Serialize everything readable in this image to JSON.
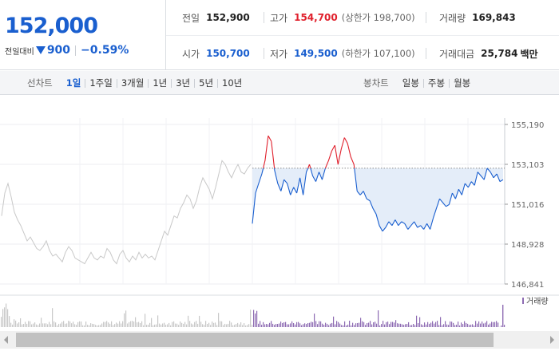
{
  "quote": {
    "price": "152,000",
    "change_label": "전일대비",
    "change_amount": "900",
    "change_percent": "−0.59%",
    "prev_close": {
      "label": "전일",
      "value": "152,900"
    },
    "high": {
      "label": "고가",
      "value": "154,700",
      "limit_text": "(상한가 198,700)"
    },
    "volume": {
      "label": "거래량",
      "value": "169,843"
    },
    "open": {
      "label": "시가",
      "value": "150,700"
    },
    "low": {
      "label": "저가",
      "value": "149,500",
      "limit_text": "(하한가 107,100)"
    },
    "amount": {
      "label": "거래대금",
      "value": "25,784",
      "unit": "백만"
    }
  },
  "line_tabs": {
    "label": "선차트",
    "items": [
      "1일",
      "1주일",
      "3개월",
      "1년",
      "3년",
      "5년",
      "10년"
    ],
    "active": 0
  },
  "candle_tabs": {
    "label": "봉차트",
    "items": [
      "일봉",
      "주봉",
      "월봉"
    ]
  },
  "colors": {
    "up": "#e0202c",
    "down": "#1a5fcf",
    "prev_day_line": "#c8c8c8",
    "fill_area": "#e4edf9",
    "volume_today": "#8e6bb3",
    "volume_prev": "#c8c8c8"
  },
  "chart_data": {
    "type": "line",
    "ylim": [
      146841,
      155190
    ],
    "y_ticks": [
      "155,190",
      "153,103",
      "151,016",
      "148,928",
      "146,841"
    ],
    "reference_price": 152900,
    "volume_legend": "거래량",
    "series": [
      {
        "values": [
          150400,
          151600,
          152100,
          151400,
          150600,
          150200,
          149900,
          149500,
          149100,
          149300,
          149000,
          148700,
          148600,
          148800,
          149100,
          148600,
          148300,
          148400,
          148200,
          148000,
          148500,
          148800,
          148600,
          148200,
          148100,
          148000,
          147900,
          148200,
          148500,
          148200,
          148100,
          148300,
          148200,
          148700,
          148500,
          148100,
          147900,
          148400,
          148600,
          148200,
          148000,
          148300,
          148100,
          148500,
          148200,
          148400,
          148200,
          148300,
          148100,
          148600,
          149100,
          149600,
          149400,
          149900,
          150400,
          150300,
          150800,
          151100,
          151500,
          151300,
          150800,
          151200,
          151900,
          152400,
          152100,
          151800,
          151300,
          151900,
          152600,
          153300,
          153100,
          152700,
          152400,
          152800,
          153100,
          152700,
          152600,
          152900,
          153100
        ]
      },
      {
        "values": [
          150000,
          151600,
          152100,
          152600,
          153300,
          154600,
          154300,
          152800,
          152100,
          151700,
          152300,
          152100,
          151500,
          151900,
          151600,
          152400,
          151500,
          152700,
          153100,
          152500,
          152200,
          152700,
          152300,
          152900,
          153300,
          153800,
          154100,
          153100,
          153900,
          154500,
          154200,
          153500,
          153100,
          151700,
          151500,
          151700,
          151300,
          151200,
          150800,
          150500,
          149900,
          149600,
          149800,
          150100,
          149900,
          150200,
          149900,
          150100,
          150000,
          149700,
          149900,
          150100,
          149800,
          149900,
          149700,
          150000,
          149700,
          150300,
          150800,
          151300,
          151100,
          150900,
          151000,
          151600,
          151300,
          151800,
          151500,
          152100,
          151900,
          152200,
          152000,
          152700,
          152500,
          152300,
          152900,
          152700,
          152400,
          152600,
          152200,
          152300
        ]
      }
    ]
  }
}
